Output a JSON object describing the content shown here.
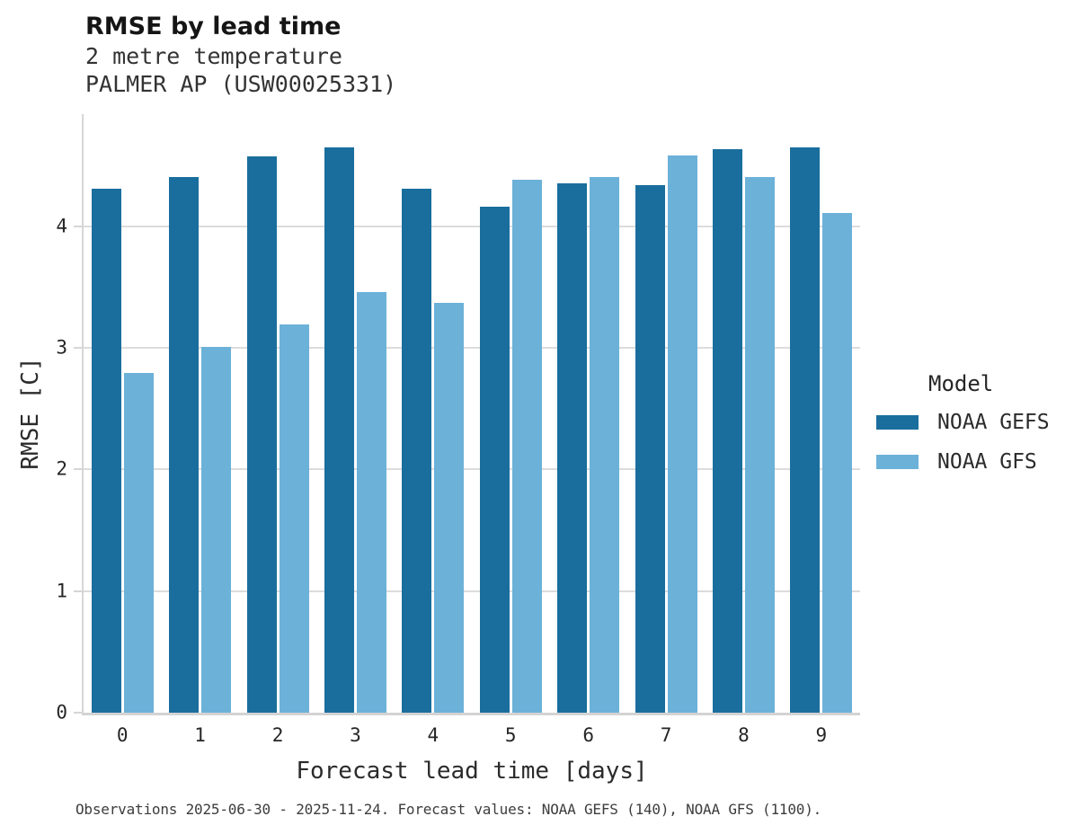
{
  "header": {
    "title": "RMSE by lead time",
    "subtitle_line1": "2 metre temperature",
    "subtitle_line2": "PALMER AP (USW00025331)"
  },
  "chart_data": {
    "type": "bar",
    "title": "RMSE by lead time",
    "subtitle": [
      "2 metre temperature",
      "PALMER AP (USW00025331)"
    ],
    "categories": [
      "0",
      "1",
      "2",
      "3",
      "4",
      "5",
      "6",
      "7",
      "8",
      "9"
    ],
    "series": [
      {
        "name": "NOAA GEFS",
        "color": "#1a6e9d",
        "values": [
          4.31,
          4.4,
          4.57,
          4.65,
          4.31,
          4.16,
          4.35,
          4.34,
          4.63,
          4.65
        ]
      },
      {
        "name": "NOAA GFS",
        "color": "#6cb1d8",
        "values": [
          2.79,
          3.01,
          3.19,
          3.46,
          3.37,
          4.38,
          4.4,
          4.58,
          4.4,
          4.11
        ]
      }
    ],
    "xlabel": "Forecast lead time [days]",
    "ylabel": "RMSE [C]",
    "ylim": [
      0,
      4.92
    ],
    "yticks": [
      0,
      1,
      2,
      3,
      4
    ],
    "grid": true,
    "grid_color": "#dcdcdc",
    "legend_title": "Model",
    "legend_position": "right"
  },
  "footer": {
    "text": "Observations 2025-06-30 - 2025-11-24. Forecast values: NOAA GEFS (140), NOAA GFS (1100)."
  }
}
